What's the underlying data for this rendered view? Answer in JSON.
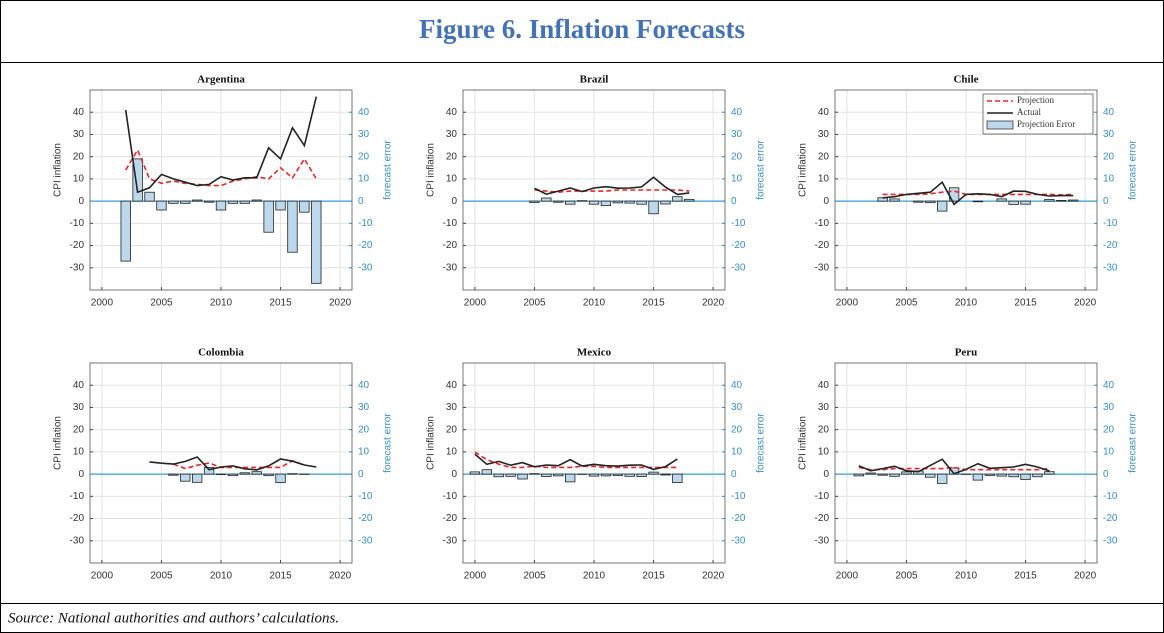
{
  "header": {
    "title": "Figure 6. Inflation Forecasts"
  },
  "footer": {
    "source": "Source:  National authorities and authors’ calculations."
  },
  "chart_data": [
    {
      "type": "combo",
      "title": "Argentina",
      "ylabel": "CPI inflation",
      "y2label": "forecast error",
      "x": [
        2002,
        2003,
        2004,
        2005,
        2006,
        2007,
        2008,
        2009,
        2010,
        2011,
        2012,
        2013,
        2014,
        2015,
        2016,
        2017,
        2018
      ],
      "xlim": [
        1999,
        2021
      ],
      "xticks": [
        2000,
        2005,
        2010,
        2015,
        2020
      ],
      "ylim": [
        -40,
        50
      ],
      "yticks": [
        -30,
        -20,
        -10,
        0,
        10,
        20,
        30,
        40
      ],
      "y2lim": [
        -40,
        50
      ],
      "y2ticks": [
        -30,
        -20,
        -10,
        0,
        10,
        20,
        30,
        40
      ],
      "grid": true,
      "series": [
        {
          "name": "Projection Error",
          "kind": "bar",
          "axis": "y2",
          "color": "#bcd8ec",
          "values": [
            -27,
            19,
            4,
            -4,
            -1,
            -1,
            0.5,
            -0.5,
            -4,
            -1,
            -1,
            0.5,
            -14,
            -4,
            -23,
            -5,
            -37
          ]
        },
        {
          "name": "Projection",
          "kind": "dashed",
          "color": "#e8262a",
          "values": [
            14,
            23,
            10,
            8,
            9,
            8,
            7.5,
            7,
            7,
            9,
            10,
            11,
            10,
            15,
            10.5,
            19,
            10
          ]
        },
        {
          "name": "Actual",
          "kind": "line",
          "color": "#222222",
          "values": [
            41,
            4,
            6,
            12,
            10,
            8.5,
            7,
            7.5,
            11,
            9.5,
            10.5,
            10.5,
            24,
            19,
            33,
            25,
            47
          ]
        }
      ]
    },
    {
      "type": "combo",
      "title": "Brazil",
      "ylabel": "CPI inflation",
      "y2label": "forecast error",
      "x": [
        2005,
        2006,
        2007,
        2008,
        2009,
        2010,
        2011,
        2012,
        2013,
        2014,
        2015,
        2016,
        2017,
        2018
      ],
      "xlim": [
        1999,
        2021
      ],
      "xticks": [
        2000,
        2005,
        2010,
        2015,
        2020
      ],
      "ylim": [
        -40,
        50
      ],
      "yticks": [
        -30,
        -20,
        -10,
        0,
        10,
        20,
        30,
        40
      ],
      "y2lim": [
        -40,
        50
      ],
      "y2ticks": [
        -30,
        -20,
        -10,
        0,
        10,
        20,
        30,
        40
      ],
      "grid": true,
      "series": [
        {
          "name": "Projection Error",
          "kind": "bar",
          "axis": "y2",
          "color": "#bcd8ec",
          "values": [
            -0.6,
            1.4,
            -0.5,
            -1.4,
            0.2,
            -1.4,
            -2,
            -0.8,
            -0.9,
            -1.4,
            -5.7,
            -1.3,
            2,
            0.8
          ]
        },
        {
          "name": "Projection",
          "kind": "dashed",
          "color": "#e8262a",
          "values": [
            5.1,
            4.5,
            4,
            4.5,
            4.5,
            4.5,
            4.5,
            5,
            5,
            5,
            5,
            5,
            5,
            4.5
          ]
        },
        {
          "name": "Actual",
          "kind": "line",
          "color": "#222222",
          "values": [
            5.7,
            3.1,
            4.5,
            5.9,
            4.3,
            5.9,
            6.5,
            5.8,
            5.9,
            6.4,
            10.7,
            6.3,
            3.0,
            3.7
          ]
        }
      ]
    },
    {
      "type": "combo",
      "title": "Chile",
      "ylabel": "CPI inflation",
      "y2label": "forecast error",
      "legend": "upper right",
      "x": [
        2003,
        2004,
        2005,
        2006,
        2007,
        2008,
        2009,
        2010,
        2011,
        2012,
        2013,
        2014,
        2015,
        2016,
        2017,
        2018,
        2019
      ],
      "xlim": [
        1999,
        2021
      ],
      "xticks": [
        2000,
        2005,
        2010,
        2015,
        2020
      ],
      "ylim": [
        -40,
        50
      ],
      "yticks": [
        -30,
        -20,
        -10,
        0,
        10,
        20,
        30,
        40
      ],
      "y2lim": [
        -40,
        50
      ],
      "y2ticks": [
        -30,
        -20,
        -10,
        0,
        10,
        20,
        30,
        40
      ],
      "grid": true,
      "series": [
        {
          "name": "Projection Error",
          "kind": "bar",
          "axis": "y2",
          "color": "#bcd8ec",
          "values": [
            1.5,
            1,
            0,
            -0.5,
            -0.7,
            -4.5,
            6,
            0,
            -0.3,
            0,
            1,
            -1.5,
            -1.4,
            0,
            0.7,
            0.3,
            0.5
          ]
        },
        {
          "name": "Projection",
          "kind": "dashed",
          "color": "#e8262a",
          "values": [
            3,
            3,
            3,
            3,
            3.3,
            4,
            4.5,
            3,
            3,
            3,
            3,
            3,
            3,
            3,
            3,
            2.8,
            3
          ]
        },
        {
          "name": "Actual",
          "kind": "line",
          "color": "#222222",
          "values": [
            1.5,
            2,
            3,
            3.5,
            4,
            8.5,
            -1.5,
            3,
            3.3,
            3,
            2,
            4.5,
            4.4,
            3,
            2.3,
            2.5,
            2.5
          ]
        }
      ]
    },
    {
      "type": "combo",
      "title": "Colombia",
      "ylabel": "CPI inflation",
      "y2label": "forecast error",
      "x": [
        2004,
        2005,
        2006,
        2007,
        2008,
        2009,
        2010,
        2011,
        2012,
        2013,
        2014,
        2015,
        2016,
        2017,
        2018
      ],
      "xlim": [
        1999,
        2021
      ],
      "xticks": [
        2000,
        2005,
        2010,
        2015,
        2020
      ],
      "ylim": [
        -40,
        50
      ],
      "yticks": [
        -30,
        -20,
        -10,
        0,
        10,
        20,
        30,
        40
      ],
      "y2lim": [
        -40,
        50
      ],
      "y2ticks": [
        -30,
        -20,
        -10,
        0,
        10,
        20,
        30,
        40
      ],
      "grid": true,
      "series": [
        {
          "name": "Projection Error",
          "kind": "bar",
          "axis": "y2",
          "color": "#bcd8ec",
          "values": [
            null,
            null,
            -0.5,
            -3.2,
            -3.7,
            3,
            -0.2,
            -0.7,
            0.6,
            1.1,
            -0.7,
            -3.8,
            0.2,
            -0.1,
            null
          ]
        },
        {
          "name": "Projection",
          "kind": "dashed",
          "color": "#e8262a",
          "values": [
            null,
            null,
            4.5,
            2.5,
            4,
            5,
            3,
            3,
            3,
            3,
            3,
            3,
            6,
            4,
            null
          ]
        },
        {
          "name": "Actual",
          "kind": "line",
          "color": "#222222",
          "values": [
            5.5,
            4.9,
            4.5,
            5.7,
            7.7,
            2,
            3.2,
            3.7,
            2.4,
            1.9,
            3.7,
            6.8,
            5.8,
            4.1,
            3.2
          ]
        }
      ]
    },
    {
      "type": "combo",
      "title": "Mexico",
      "ylabel": "CPI inflation",
      "y2label": "forecast error",
      "x": [
        2000,
        2001,
        2002,
        2003,
        2004,
        2005,
        2006,
        2007,
        2008,
        2009,
        2010,
        2011,
        2012,
        2013,
        2014,
        2015,
        2016,
        2017
      ],
      "xlim": [
        1999,
        2021
      ],
      "xticks": [
        2000,
        2005,
        2010,
        2015,
        2020
      ],
      "ylim": [
        -40,
        50
      ],
      "yticks": [
        -30,
        -20,
        -10,
        0,
        10,
        20,
        30,
        40
      ],
      "y2lim": [
        -40,
        50
      ],
      "y2ticks": [
        -30,
        -20,
        -10,
        0,
        10,
        20,
        30,
        40
      ],
      "grid": true,
      "series": [
        {
          "name": "Projection Error",
          "kind": "bar",
          "axis": "y2",
          "color": "#bcd8ec",
          "values": [
            1,
            2,
            -1.2,
            -1,
            -2.2,
            0.2,
            -1.1,
            -0.8,
            -3.5,
            -0.1,
            -0.9,
            -0.8,
            -0.6,
            -1,
            -1.1,
            0.9,
            -0.4,
            -3.8
          ]
        },
        {
          "name": "Projection",
          "kind": "dashed",
          "color": "#e8262a",
          "values": [
            10,
            6.5,
            4.5,
            3,
            3,
            3.5,
            3,
            3,
            3,
            3.5,
            3.5,
            3,
            3,
            3,
            3,
            3,
            3,
            3
          ]
        },
        {
          "name": "Actual",
          "kind": "line",
          "color": "#222222",
          "values": [
            9,
            4.4,
            5.7,
            4,
            5.2,
            3.3,
            4.1,
            3.8,
            6.5,
            3.6,
            4.4,
            3.8,
            3.6,
            4,
            4.1,
            2.1,
            3.4,
            6.8
          ]
        }
      ]
    },
    {
      "type": "combo",
      "title": "Peru",
      "ylabel": "CPI inflation",
      "y2label": "forecast error",
      "x": [
        2001,
        2002,
        2003,
        2004,
        2005,
        2006,
        2007,
        2008,
        2009,
        2010,
        2011,
        2012,
        2013,
        2014,
        2015,
        2016,
        2017
      ],
      "xlim": [
        1999,
        2021
      ],
      "xticks": [
        2000,
        2005,
        2010,
        2015,
        2020
      ],
      "ylim": [
        -40,
        50
      ],
      "yticks": [
        -30,
        -20,
        -10,
        0,
        10,
        20,
        30,
        40
      ],
      "y2lim": [
        -40,
        50
      ],
      "y2ticks": [
        -30,
        -20,
        -10,
        0,
        10,
        20,
        30,
        40
      ],
      "grid": true,
      "series": [
        {
          "name": "Projection Error",
          "kind": "bar",
          "axis": "y2",
          "color": "#bcd8ec",
          "values": [
            -0.8,
            0.5,
            -0.5,
            -1,
            1,
            1.4,
            -1.4,
            -4.2,
            2.8,
            -0.1,
            -2.7,
            -0.6,
            -0.9,
            -1.2,
            -2.4,
            -1.2,
            1.1
          ]
        },
        {
          "name": "Projection",
          "kind": "dashed",
          "color": "#e8262a",
          "values": [
            3,
            2,
            2,
            2.5,
            2.5,
            2.5,
            2.5,
            2.5,
            3,
            2,
            2,
            2,
            2,
            2,
            2,
            2,
            2.5
          ]
        },
        {
          "name": "Actual",
          "kind": "line",
          "color": "#222222",
          "values": [
            3.8,
            1.5,
            2.5,
            3.5,
            1.5,
            1.1,
            3.9,
            6.7,
            0.2,
            2.1,
            4.7,
            2.6,
            2.9,
            3.2,
            4.4,
            3.2,
            1.4
          ]
        }
      ]
    }
  ]
}
